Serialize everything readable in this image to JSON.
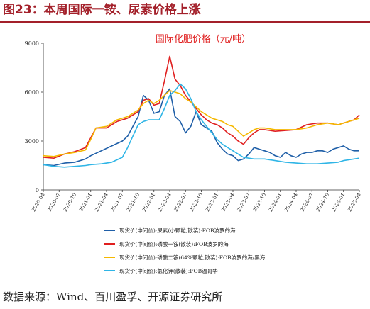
{
  "header": {
    "title": "图23：本周国际一铵、尿素价格上涨"
  },
  "source": {
    "text": "数据来源：Wind、百川盈孚、开源证券研究所"
  },
  "chart_data": {
    "type": "line",
    "title": "国际化肥价格（元/吨）",
    "ylim": [
      0,
      9000
    ],
    "yticks": [
      0,
      3000,
      6000,
      9000
    ],
    "xticks": [
      "2020-04",
      "2020-07",
      "2020-10",
      "2021-01",
      "2021-04",
      "2021-07",
      "2021-10",
      "2022-01",
      "2022-04",
      "2022-07",
      "2022-10",
      "2023-01",
      "2023-04",
      "2023-07",
      "2023-10",
      "2024-01",
      "2024-04",
      "2024-07",
      "2024-10",
      "2025-01",
      "2025-04"
    ],
    "grid": false,
    "legend_position": "bottom",
    "series": [
      {
        "name": "现货价(中间价):尿素(小颗粒,散装):FOB波罗的海",
        "color": "#1f5fa8",
        "points": [
          [
            "2020-04",
            1550
          ],
          [
            "2020-06",
            1500
          ],
          [
            "2020-08",
            1650
          ],
          [
            "2020-10",
            1700
          ],
          [
            "2020-12",
            1900
          ],
          [
            "2021-01",
            2100
          ],
          [
            "2021-03",
            2400
          ],
          [
            "2021-05",
            2700
          ],
          [
            "2021-07",
            3000
          ],
          [
            "2021-08",
            3300
          ],
          [
            "2021-10",
            4500
          ],
          [
            "2021-11",
            5800
          ],
          [
            "2021-12",
            5500
          ],
          [
            "2022-01",
            4700
          ],
          [
            "2022-02",
            4800
          ],
          [
            "2022-03",
            5800
          ],
          [
            "2022-04",
            6200
          ],
          [
            "2022-05",
            4500
          ],
          [
            "2022-06",
            4200
          ],
          [
            "2022-07",
            3500
          ],
          [
            "2022-08",
            3900
          ],
          [
            "2022-09",
            4800
          ],
          [
            "2022-10",
            4000
          ],
          [
            "2022-11",
            3800
          ],
          [
            "2022-12",
            3600
          ],
          [
            "2023-01",
            2900
          ],
          [
            "2023-02",
            2500
          ],
          [
            "2023-03",
            2200
          ],
          [
            "2023-04",
            2100
          ],
          [
            "2023-05",
            1800
          ],
          [
            "2023-06",
            1900
          ],
          [
            "2023-07",
            2200
          ],
          [
            "2023-08",
            2600
          ],
          [
            "2023-09",
            2500
          ],
          [
            "2023-10",
            2400
          ],
          [
            "2023-11",
            2300
          ],
          [
            "2023-12",
            2100
          ],
          [
            "2024-01",
            2000
          ],
          [
            "2024-02",
            2300
          ],
          [
            "2024-03",
            2100
          ],
          [
            "2024-04",
            2000
          ],
          [
            "2024-05",
            2200
          ],
          [
            "2024-06",
            2300
          ],
          [
            "2024-07",
            2300
          ],
          [
            "2024-08",
            2400
          ],
          [
            "2024-09",
            2400
          ],
          [
            "2024-10",
            2300
          ],
          [
            "2024-11",
            2500
          ],
          [
            "2024-12",
            2600
          ],
          [
            "2025-01",
            2700
          ],
          [
            "2025-02",
            2500
          ],
          [
            "2025-03",
            2400
          ],
          [
            "2025-04",
            2400
          ]
        ]
      },
      {
        "name": "现货价(中间价):磷酸一铵(散装):FOB波罗的海",
        "color": "#e01f1f",
        "points": [
          [
            "2020-04",
            2000
          ],
          [
            "2020-06",
            1950
          ],
          [
            "2020-08",
            2200
          ],
          [
            "2020-10",
            2350
          ],
          [
            "2020-12",
            2600
          ],
          [
            "2021-01",
            3200
          ],
          [
            "2021-02",
            3800
          ],
          [
            "2021-04",
            3800
          ],
          [
            "2021-06",
            4200
          ],
          [
            "2021-08",
            4400
          ],
          [
            "2021-10",
            4800
          ],
          [
            "2021-11",
            5500
          ],
          [
            "2021-12",
            5600
          ],
          [
            "2022-01",
            5200
          ],
          [
            "2022-02",
            5300
          ],
          [
            "2022-03",
            6700
          ],
          [
            "2022-04",
            8200
          ],
          [
            "2022-05",
            6800
          ],
          [
            "2022-06",
            6400
          ],
          [
            "2022-07",
            5800
          ],
          [
            "2022-08",
            5400
          ],
          [
            "2022-09",
            5000
          ],
          [
            "2022-10",
            4600
          ],
          [
            "2022-11",
            4300
          ],
          [
            "2022-12",
            4100
          ],
          [
            "2023-01",
            4000
          ],
          [
            "2023-02",
            3800
          ],
          [
            "2023-03",
            3500
          ],
          [
            "2023-04",
            3300
          ],
          [
            "2023-05",
            3000
          ],
          [
            "2023-06",
            2800
          ],
          [
            "2023-07",
            3200
          ],
          [
            "2023-08",
            3500
          ],
          [
            "2023-09",
            3700
          ],
          [
            "2023-10",
            3700
          ],
          [
            "2023-12",
            3600
          ],
          [
            "2024-02",
            3650
          ],
          [
            "2024-04",
            3700
          ],
          [
            "2024-06",
            4000
          ],
          [
            "2024-08",
            4100
          ],
          [
            "2024-10",
            4100
          ],
          [
            "2024-12",
            4000
          ],
          [
            "2025-01",
            4100
          ],
          [
            "2025-02",
            4200
          ],
          [
            "2025-03",
            4300
          ],
          [
            "2025-04",
            4600
          ]
        ]
      },
      {
        "name": "现货价(中间价):磷酸二铵(64%颗粒,散装):FOB波罗的海/黑海",
        "color": "#f5b800",
        "points": [
          [
            "2020-04",
            2100
          ],
          [
            "2020-06",
            2050
          ],
          [
            "2020-08",
            2200
          ],
          [
            "2020-10",
            2300
          ],
          [
            "2020-12",
            2450
          ],
          [
            "2021-01",
            3100
          ],
          [
            "2021-02",
            3800
          ],
          [
            "2021-04",
            3900
          ],
          [
            "2021-06",
            4300
          ],
          [
            "2021-08",
            4500
          ],
          [
            "2021-10",
            4900
          ],
          [
            "2021-11",
            5300
          ],
          [
            "2021-12",
            5500
          ],
          [
            "2022-01",
            5300
          ],
          [
            "2022-02",
            5500
          ],
          [
            "2022-03",
            5800
          ],
          [
            "2022-04",
            6100
          ],
          [
            "2022-05",
            6000
          ],
          [
            "2022-06",
            5900
          ],
          [
            "2022-07",
            5600
          ],
          [
            "2022-08",
            5400
          ],
          [
            "2022-09",
            5100
          ],
          [
            "2022-10",
            4800
          ],
          [
            "2022-11",
            4600
          ],
          [
            "2022-12",
            4400
          ],
          [
            "2023-01",
            4300
          ],
          [
            "2023-02",
            4200
          ],
          [
            "2023-03",
            4000
          ],
          [
            "2023-04",
            3900
          ],
          [
            "2023-05",
            3600
          ],
          [
            "2023-06",
            3300
          ],
          [
            "2023-07",
            3500
          ],
          [
            "2023-08",
            3700
          ],
          [
            "2023-09",
            3800
          ],
          [
            "2023-10",
            3800
          ],
          [
            "2023-12",
            3700
          ],
          [
            "2024-02",
            3700
          ],
          [
            "2024-04",
            3700
          ],
          [
            "2024-06",
            3800
          ],
          [
            "2024-08",
            4000
          ],
          [
            "2024-10",
            4100
          ],
          [
            "2024-12",
            4000
          ],
          [
            "2025-01",
            4100
          ],
          [
            "2025-02",
            4200
          ],
          [
            "2025-03",
            4300
          ],
          [
            "2025-04",
            4400
          ]
        ]
      },
      {
        "name": "现货价(中间价):氯化钾(散装):FOB温哥华",
        "color": "#2fb5e6",
        "points": [
          [
            "2020-04",
            1550
          ],
          [
            "2020-06",
            1450
          ],
          [
            "2020-08",
            1400
          ],
          [
            "2020-10",
            1450
          ],
          [
            "2020-12",
            1500
          ],
          [
            "2021-01",
            1550
          ],
          [
            "2021-03",
            1600
          ],
          [
            "2021-05",
            1700
          ],
          [
            "2021-07",
            2000
          ],
          [
            "2021-08",
            2600
          ],
          [
            "2021-09",
            3300
          ],
          [
            "2021-10",
            4000
          ],
          [
            "2021-11",
            4200
          ],
          [
            "2021-12",
            4300
          ],
          [
            "2022-01",
            4300
          ],
          [
            "2022-02",
            4300
          ],
          [
            "2022-03",
            5000
          ],
          [
            "2022-04",
            5800
          ],
          [
            "2022-05",
            6100
          ],
          [
            "2022-06",
            6500
          ],
          [
            "2022-07",
            6200
          ],
          [
            "2022-08",
            5600
          ],
          [
            "2022-09",
            4800
          ],
          [
            "2022-10",
            4300
          ],
          [
            "2022-11",
            3900
          ],
          [
            "2022-12",
            3500
          ],
          [
            "2023-01",
            3100
          ],
          [
            "2023-02",
            2800
          ],
          [
            "2023-03",
            2600
          ],
          [
            "2023-04",
            2400
          ],
          [
            "2023-05",
            2200
          ],
          [
            "2023-06",
            2000
          ],
          [
            "2023-07",
            1950
          ],
          [
            "2023-08",
            1900
          ],
          [
            "2023-09",
            1900
          ],
          [
            "2023-10",
            1900
          ],
          [
            "2023-12",
            1800
          ],
          [
            "2024-02",
            1700
          ],
          [
            "2024-04",
            1650
          ],
          [
            "2024-06",
            1600
          ],
          [
            "2024-08",
            1600
          ],
          [
            "2024-10",
            1650
          ],
          [
            "2024-12",
            1700
          ],
          [
            "2025-01",
            1800
          ],
          [
            "2025-02",
            1850
          ],
          [
            "2025-03",
            1900
          ],
          [
            "2025-04",
            1950
          ]
        ]
      }
    ]
  }
}
